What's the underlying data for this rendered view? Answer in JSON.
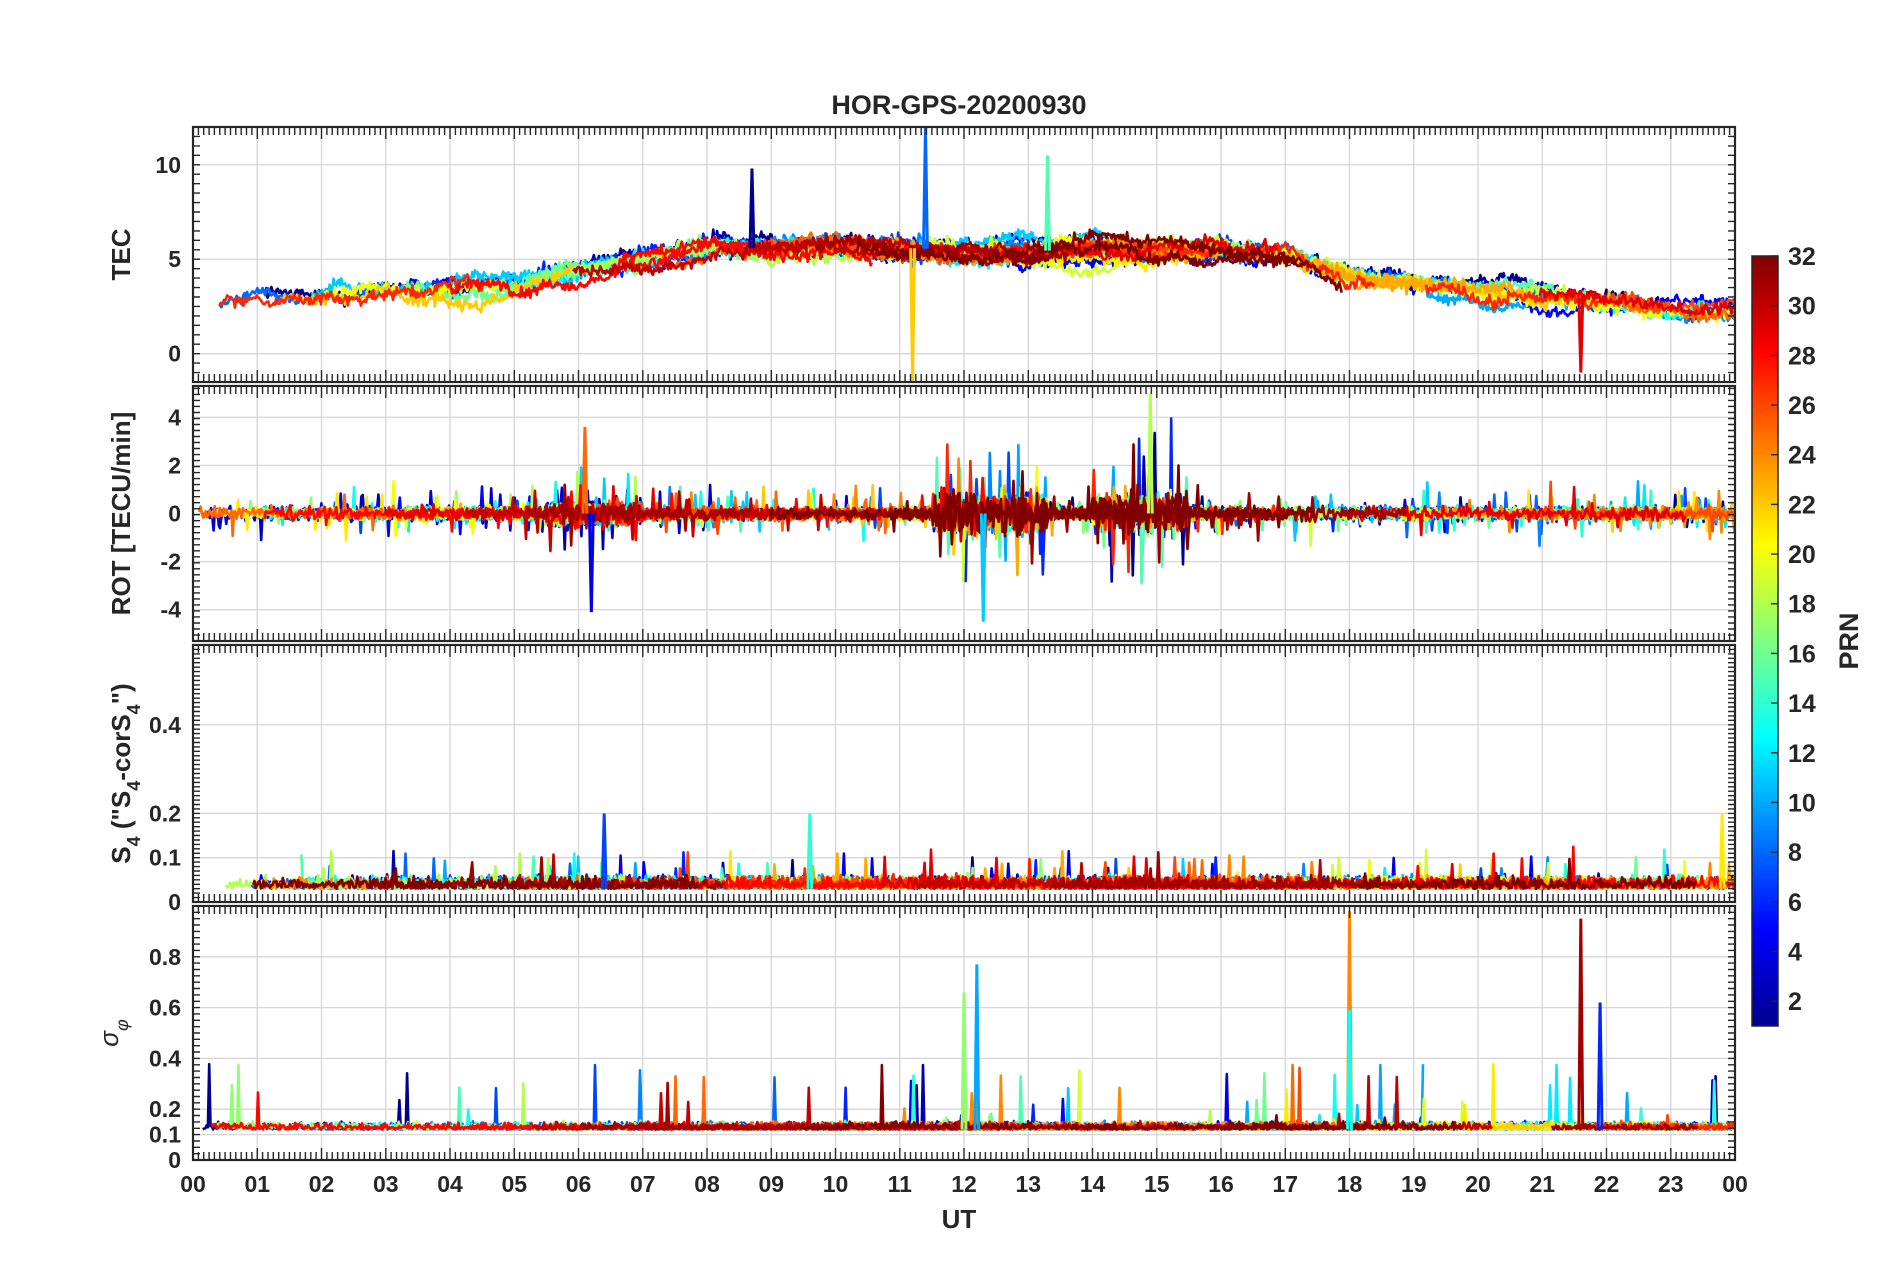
{
  "chart_data": {
    "type": "line",
    "title": "HOR-GPS-20200930",
    "xlabel": "UT",
    "x_ticks": [
      "00",
      "01",
      "02",
      "03",
      "04",
      "05",
      "06",
      "07",
      "08",
      "09",
      "10",
      "11",
      "12",
      "13",
      "14",
      "15",
      "16",
      "17",
      "18",
      "19",
      "20",
      "21",
      "22",
      "23",
      "00"
    ],
    "xlim": [
      0,
      24
    ],
    "colorbar": {
      "label": "PRN",
      "range": [
        1,
        32
      ],
      "ticks": [
        "2",
        "4",
        "6",
        "8",
        "10",
        "12",
        "14",
        "16",
        "18",
        "20",
        "22",
        "24",
        "26",
        "28",
        "30",
        "32"
      ],
      "colormap": [
        "#00008f",
        "#0000ff",
        "#0080ff",
        "#00ffff",
        "#80ff80",
        "#ffff00",
        "#ff8000",
        "#ff0000",
        "#800000"
      ]
    },
    "panels": [
      {
        "name": "tec",
        "ylabel": "TEC",
        "ylim": [
          -1.5,
          12
        ],
        "y_ticks": [
          {
            "v": 0,
            "label": "0"
          },
          {
            "v": 5,
            "label": "5"
          },
          {
            "v": 10,
            "label": "10"
          }
        ],
        "y_minor": 0.5,
        "baseline": [
          [
            0,
            2.2
          ],
          [
            1,
            3.2
          ],
          [
            2,
            3.0
          ],
          [
            3,
            3.4
          ],
          [
            4,
            3.6
          ],
          [
            5,
            3.6
          ],
          [
            6,
            4.4
          ],
          [
            7,
            4.9
          ],
          [
            8,
            5.6
          ],
          [
            9,
            5.6
          ],
          [
            10,
            5.7
          ],
          [
            11,
            5.6
          ],
          [
            12,
            5.5
          ],
          [
            13,
            5.4
          ],
          [
            14,
            5.6
          ],
          [
            15,
            5.5
          ],
          [
            16,
            5.6
          ],
          [
            17,
            5.3
          ],
          [
            18,
            4.1
          ],
          [
            19,
            3.6
          ],
          [
            20,
            3.2
          ],
          [
            21,
            3.1
          ],
          [
            22,
            2.8
          ],
          [
            23,
            2.4
          ],
          [
            24,
            2.4
          ]
        ],
        "noise": 0.3
      },
      {
        "name": "rot",
        "ylabel": "ROT [TECU/min]",
        "ylim": [
          -5.3,
          5.3
        ],
        "y_ticks": [
          {
            "v": -4,
            "label": "-4"
          },
          {
            "v": -2,
            "label": "-2"
          },
          {
            "v": 0,
            "label": "0"
          },
          {
            "v": 2,
            "label": "2"
          },
          {
            "v": 4,
            "label": "4"
          }
        ],
        "y_minor": 0.25,
        "baseline": [
          [
            0,
            0
          ],
          [
            24,
            0
          ]
        ],
        "noise": 0.25
      },
      {
        "name": "s4",
        "ylabel": "S4 (\"S4-corS4\")",
        "ylim": [
          0,
          0.58
        ],
        "y_ticks": [
          {
            "v": 0,
            "label": "0"
          },
          {
            "v": 0.1,
            "label": "0.1"
          },
          {
            "v": 0.2,
            "label": "0.2"
          },
          {
            "v": 0.4,
            "label": "0.4"
          }
        ],
        "y_minor": 0.01,
        "baseline": [
          [
            0,
            0.03
          ],
          [
            24,
            0.03
          ]
        ],
        "noise": 0.012
      },
      {
        "name": "sigma",
        "ylabel": "σφ",
        "ylim": [
          0,
          1
        ],
        "y_ticks": [
          {
            "v": 0,
            "label": "0"
          },
          {
            "v": 0.1,
            "label": "0.1"
          },
          {
            "v": 0.2,
            "label": "0.2"
          },
          {
            "v": 0.4,
            "label": "0.4"
          },
          {
            "v": 0.6,
            "label": "0.6"
          },
          {
            "v": 0.8,
            "label": "0.8"
          }
        ],
        "y_minor": 0.025,
        "baseline": [
          [
            0,
            0.12
          ],
          [
            24,
            0.12
          ]
        ],
        "noise": 0.012
      }
    ],
    "annotated_peaks": [
      {
        "panel": "tec",
        "x": 8.7,
        "y": 9.8
      },
      {
        "panel": "tec",
        "x": 11.4,
        "y": 12
      },
      {
        "panel": "tec",
        "x": 13.3,
        "y": 10.5
      },
      {
        "panel": "tec",
        "x": 11.2,
        "y": -1.5
      },
      {
        "panel": "tec",
        "x": 21.6,
        "y": -1.0
      },
      {
        "panel": "rot",
        "x": 6.2,
        "y": -4.1
      },
      {
        "panel": "rot",
        "x": 12.3,
        "y": -4.5
      },
      {
        "panel": "rot",
        "x": 14.9,
        "y": 5.0
      },
      {
        "panel": "rot",
        "x": 6.1,
        "y": 3.6
      },
      {
        "panel": "s4",
        "x": 6.4,
        "y": 0.2
      },
      {
        "panel": "s4",
        "x": 9.6,
        "y": 0.2
      },
      {
        "panel": "s4",
        "x": 23.8,
        "y": 0.2
      },
      {
        "panel": "sigma",
        "x": 12.2,
        "y": 0.77
      },
      {
        "panel": "sigma",
        "x": 12.0,
        "y": 0.66
      },
      {
        "panel": "sigma",
        "x": 18.0,
        "y": 0.98
      },
      {
        "panel": "sigma",
        "x": 21.6,
        "y": 0.95
      },
      {
        "panel": "sigma",
        "x": 21.9,
        "y": 0.62
      },
      {
        "panel": "sigma",
        "x": 18.0,
        "y": 0.59
      }
    ],
    "series_count": 32
  }
}
